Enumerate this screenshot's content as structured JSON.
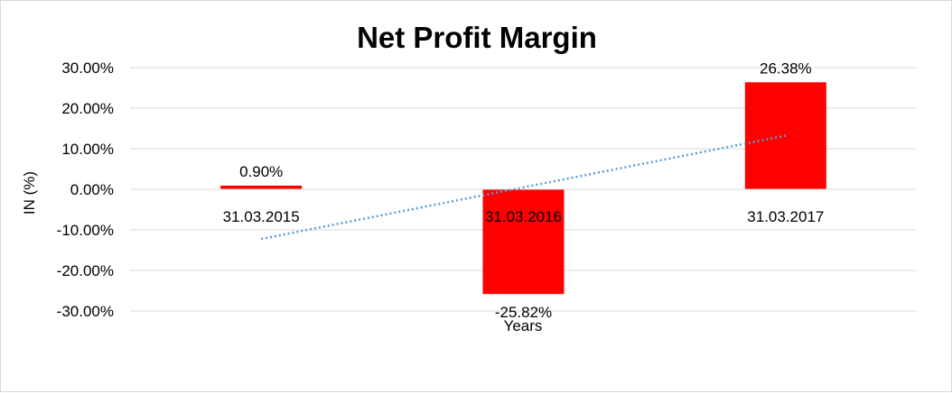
{
  "chart_data": {
    "type": "bar",
    "title": "Net Profit Margin",
    "xlabel": "Years",
    "ylabel": "IN (%)",
    "categories": [
      "31.03.2015",
      "31.03.2016",
      "31.03.2017"
    ],
    "values": [
      0.9,
      -25.82,
      26.38
    ],
    "data_labels": [
      "0.90%",
      "-25.82%",
      "26.38%"
    ],
    "ylim": [
      -30,
      30
    ],
    "yticks": [
      30,
      20,
      10,
      0,
      -10,
      -20,
      -30
    ],
    "ytick_labels": [
      "30.00%",
      "20.00%",
      "10.00%",
      "0.00%",
      "-10.00%",
      "-20.00%",
      "-30.00%"
    ],
    "bar_color": "#ff0000",
    "trendline": {
      "type": "linear",
      "style": "dotted",
      "color": "#5b9bd5"
    },
    "grid": true,
    "legend": "none"
  }
}
